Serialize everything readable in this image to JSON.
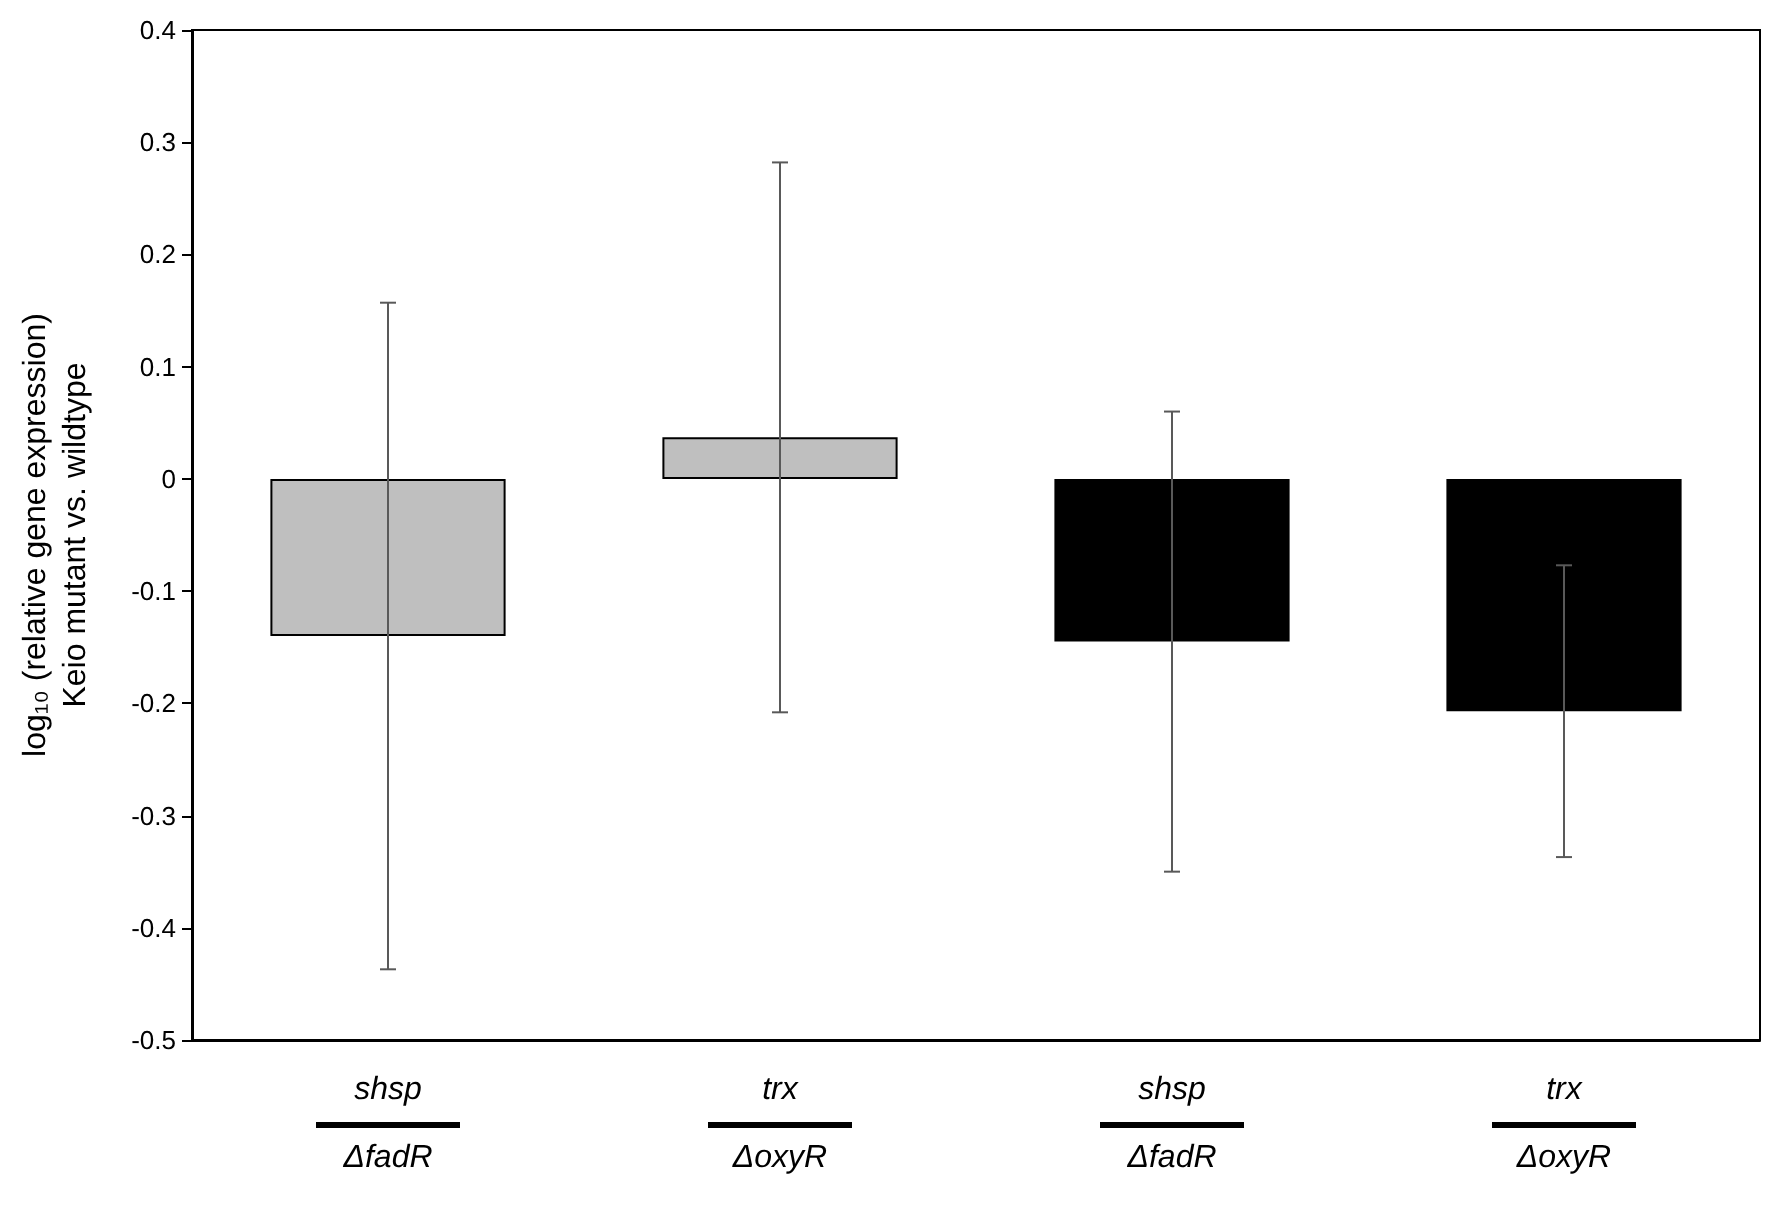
{
  "chart_data": {
    "type": "bar",
    "ylabel": "log₁₀ (relative gene expression)\nKeio mutant vs. wildtype",
    "categories": [
      "shsp\nΔfadR",
      "trx\nΔoxyR",
      "shsp\nΔfadR",
      "trx\nΔoxyR"
    ],
    "values": [
      -0.14,
      0.037,
      -0.145,
      -0.207
    ],
    "errors": [
      0.297,
      0.245,
      0.205,
      0.13
    ],
    "colors": [
      "#bfbfbf",
      "#bfbfbf",
      "#000000",
      "#000000"
    ],
    "ylim": [
      -0.5,
      0.4
    ],
    "yticks": [
      -0.5,
      -0.4,
      -0.3,
      -0.2,
      -0.1,
      0,
      0.1,
      0.2,
      0.3,
      0.4
    ],
    "grid": false
  }
}
